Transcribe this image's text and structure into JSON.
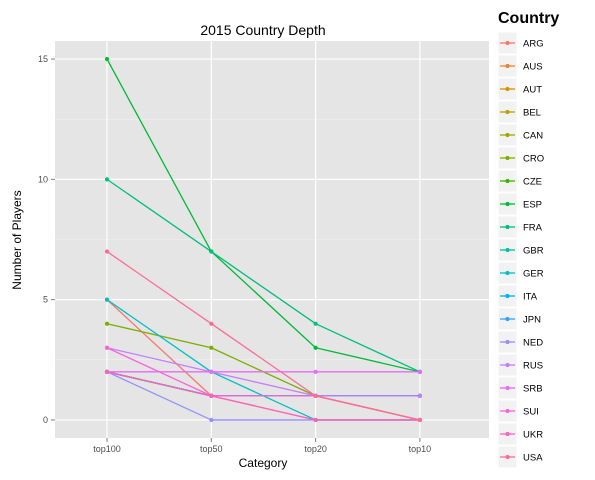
{
  "chart_data": {
    "type": "line",
    "title": "2015 Country Depth",
    "xlabel": "Category",
    "ylabel": "Number of Players",
    "categories": [
      "top100",
      "top50",
      "top20",
      "top10"
    ],
    "ylim": [
      -0.75,
      15.75
    ],
    "yticks": [
      0,
      5,
      10,
      15
    ],
    "grid": true,
    "legend": {
      "title": "Country",
      "position": "right"
    },
    "series": [
      {
        "name": "ARG",
        "color": "#f8766d",
        "values": [
          5,
          1,
          0,
          0
        ]
      },
      {
        "name": "AUS",
        "color": "#eb8335",
        "values": [
          2,
          1,
          1,
          0
        ]
      },
      {
        "name": "AUT",
        "color": "#d89000",
        "values": [
          2,
          1,
          1,
          1
        ]
      },
      {
        "name": "BEL",
        "color": "#bf9c00",
        "values": [
          2,
          1,
          1,
          1
        ]
      },
      {
        "name": "CAN",
        "color": "#a3a500",
        "values": [
          2,
          1,
          1,
          1
        ]
      },
      {
        "name": "CRO",
        "color": "#7cae00",
        "values": [
          4,
          3,
          1,
          0
        ]
      },
      {
        "name": "CZE",
        "color": "#39b600",
        "values": [
          2,
          1,
          1,
          1
        ]
      },
      {
        "name": "ESP",
        "color": "#00ba38",
        "values": [
          15,
          7,
          3,
          2
        ]
      },
      {
        "name": "FRA",
        "color": "#00bf7d",
        "values": [
          10,
          7,
          4,
          2
        ]
      },
      {
        "name": "GBR",
        "color": "#00c1a3",
        "values": [
          2,
          1,
          1,
          1
        ]
      },
      {
        "name": "GER",
        "color": "#00bfc4",
        "values": [
          5,
          2,
          0,
          0
        ]
      },
      {
        "name": "ITA",
        "color": "#00b0f6",
        "values": [
          2,
          1,
          1,
          1
        ]
      },
      {
        "name": "JPN",
        "color": "#35a2ff",
        "values": [
          2,
          1,
          1,
          1
        ]
      },
      {
        "name": "NED",
        "color": "#9590ff",
        "values": [
          2,
          0,
          0,
          0
        ]
      },
      {
        "name": "RUS",
        "color": "#c77cff",
        "values": [
          3,
          2,
          1,
          1
        ]
      },
      {
        "name": "SRB",
        "color": "#e76bf3",
        "values": [
          2,
          2,
          2,
          2
        ]
      },
      {
        "name": "SUI",
        "color": "#fa62db",
        "values": [
          3,
          1,
          1,
          0
        ]
      },
      {
        "name": "UKR",
        "color": "#ff62bc",
        "values": [
          2,
          1,
          0,
          0
        ]
      },
      {
        "name": "USA",
        "color": "#ff6c91",
        "values": [
          7,
          4,
          1,
          0
        ]
      }
    ]
  }
}
